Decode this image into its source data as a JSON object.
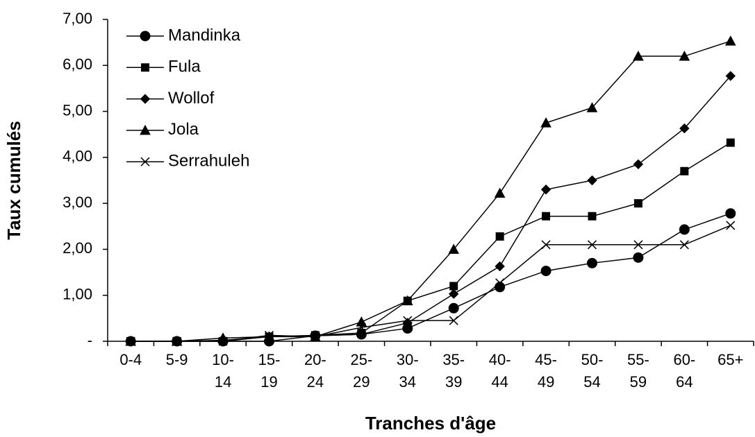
{
  "chart_data": {
    "type": "line",
    "xlabel": "Tranches d'âge",
    "ylabel": "Taux cumulés",
    "categories": [
      "0-4",
      "5-9",
      "10-14",
      "15-19",
      "20-24",
      "25-29",
      "30-34",
      "35-39",
      "40-44",
      "45-49",
      "50-54",
      "55-59",
      "60-64",
      "65+"
    ],
    "series": [
      {
        "name": "Mandinka",
        "color": "#000000",
        "marker": "circle",
        "values": [
          0,
          0,
          0,
          0,
          0.12,
          0.15,
          0.28,
          0.72,
          1.18,
          1.53,
          1.7,
          1.82,
          2.43,
          2.78
        ]
      },
      {
        "name": "Fula",
        "color": "#000000",
        "marker": "square",
        "values": [
          0,
          0,
          0,
          0.1,
          0.13,
          0.18,
          0.88,
          1.2,
          2.28,
          2.72,
          2.72,
          3.0,
          3.7,
          4.32
        ]
      },
      {
        "name": "Wollof",
        "color": "#000000",
        "marker": "diamond",
        "values": [
          0,
          0,
          0.02,
          0.1,
          0.12,
          0.15,
          0.4,
          1.03,
          1.63,
          3.3,
          3.5,
          3.85,
          4.63,
          5.77
        ]
      },
      {
        "name": "Jola",
        "color": "#000000",
        "marker": "triangle",
        "values": [
          0,
          0,
          0.07,
          0.1,
          0.1,
          0.42,
          0.88,
          2.0,
          3.22,
          4.75,
          5.08,
          6.2,
          6.2,
          6.53
        ]
      },
      {
        "name": "Serrahuleh",
        "color": "#000000",
        "marker": "x",
        "values": [
          0,
          0,
          0,
          0.13,
          0.1,
          0.3,
          0.45,
          0.45,
          1.27,
          2.1,
          2.1,
          2.1,
          2.1,
          2.52
        ]
      }
    ],
    "ylim": [
      0,
      7
    ],
    "yticks": [
      {
        "value": 0,
        "label": "-"
      },
      {
        "value": 1,
        "label": "1,00"
      },
      {
        "value": 2,
        "label": "2,00"
      },
      {
        "value": 3,
        "label": "3,00"
      },
      {
        "value": 4,
        "label": "4,00"
      },
      {
        "value": 5,
        "label": "5,00"
      },
      {
        "value": 6,
        "label": "6,00"
      },
      {
        "value": 7,
        "label": "7,00"
      }
    ],
    "legend": "top-left",
    "grid": false
  }
}
